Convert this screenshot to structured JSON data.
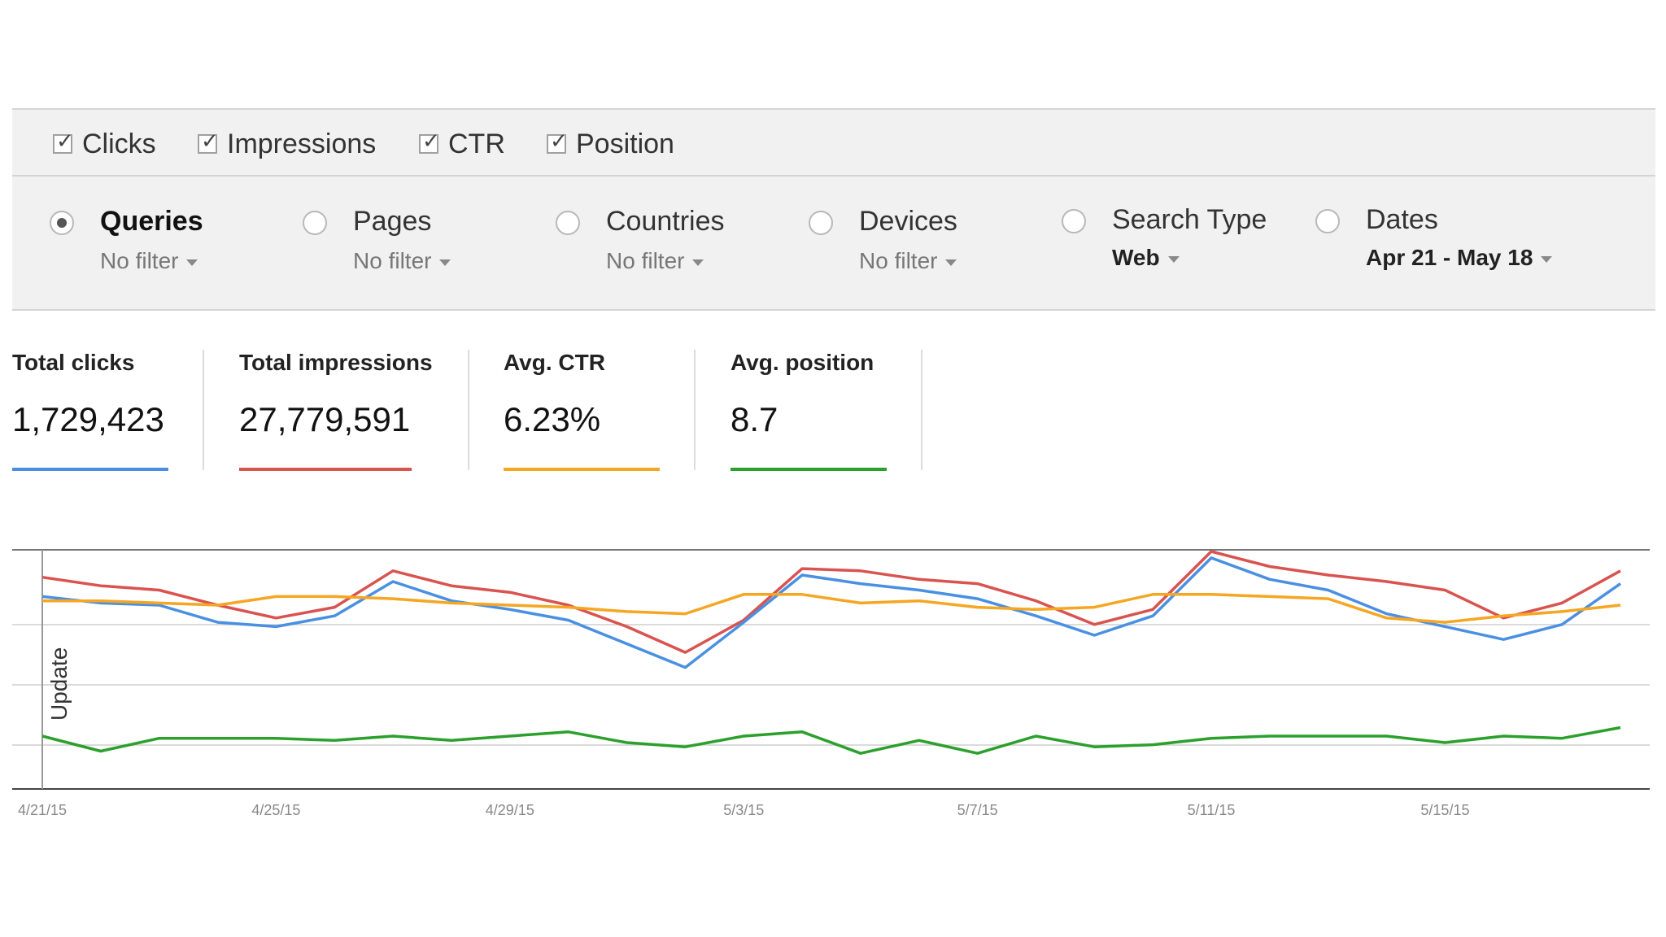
{
  "metrics": [
    {
      "label": "Clicks",
      "checked": true
    },
    {
      "label": "Impressions",
      "checked": true
    },
    {
      "label": "CTR",
      "checked": true
    },
    {
      "label": "Position",
      "checked": true
    }
  ],
  "dimensions": [
    {
      "label": "Queries",
      "filter": "No filter",
      "selected": true
    },
    {
      "label": "Pages",
      "filter": "No filter",
      "selected": false
    },
    {
      "label": "Countries",
      "filter": "No filter",
      "selected": false
    },
    {
      "label": "Devices",
      "filter": "No filter",
      "selected": false
    },
    {
      "label": "Search Type",
      "filter": "Web",
      "selected": false
    },
    {
      "label": "Dates",
      "filter": "Apr 21 - May 18",
      "selected": false
    }
  ],
  "summary": [
    {
      "title": "Total clicks",
      "value": "1,729,423",
      "color": "#4a90e2"
    },
    {
      "title": "Total impressions",
      "value": "27,779,591",
      "color": "#d9534f"
    },
    {
      "title": "Avg. CTR",
      "value": "6.23%",
      "color": "#f5a623"
    },
    {
      "title": "Avg. position",
      "value": "8.7",
      "color": "#2ca02c"
    }
  ],
  "chart_data": {
    "type": "line",
    "x": [
      "4/21/15",
      "4/22/15",
      "4/23/15",
      "4/24/15",
      "4/25/15",
      "4/26/15",
      "4/27/15",
      "4/28/15",
      "4/29/15",
      "4/30/15",
      "5/1/15",
      "5/2/15",
      "5/3/15",
      "5/4/15",
      "5/5/15",
      "5/6/15",
      "5/7/15",
      "5/8/15",
      "5/9/15",
      "5/10/15",
      "5/11/15",
      "5/12/15",
      "5/13/15",
      "5/14/15",
      "5/15/15",
      "5/16/15",
      "5/17/15",
      "5/18/15"
    ],
    "xticks": [
      "4/21/15",
      "4/25/15",
      "4/29/15",
      "5/3/15",
      "5/7/15",
      "5/11/15",
      "5/15/15"
    ],
    "annotation": {
      "label": "Update",
      "x": "4/21/15"
    },
    "ylim": [
      0,
      100
    ],
    "grid": true,
    "series": [
      {
        "color": "#d9534f",
        "values": [
          88,
          84,
          82,
          75,
          69,
          74,
          91,
          84,
          81,
          75,
          65,
          53,
          68,
          92,
          91,
          87,
          85,
          77,
          66,
          73,
          100,
          93,
          89,
          86,
          82,
          69,
          76,
          91
        ]
      },
      {
        "color": "#4a90e2",
        "values": [
          79,
          76,
          75,
          67,
          65,
          70,
          86,
          77,
          73,
          68,
          57,
          46,
          67,
          89,
          85,
          82,
          78,
          70,
          61,
          70,
          97,
          87,
          82,
          71,
          65,
          59,
          66,
          85
        ]
      },
      {
        "color": "#f5a623",
        "values": [
          77,
          77,
          76,
          75,
          79,
          79,
          78,
          76,
          75,
          74,
          72,
          71,
          80,
          80,
          76,
          77,
          74,
          73,
          74,
          80,
          80,
          79,
          78,
          69,
          67,
          70,
          72,
          75
        ]
      },
      {
        "color": "#2ca02c",
        "values": [
          14,
          7,
          13,
          13,
          13,
          12,
          14,
          12,
          14,
          16,
          11,
          9,
          14,
          16,
          6,
          12,
          6,
          14,
          9,
          10,
          13,
          14,
          14,
          14,
          11,
          14,
          13,
          18
        ]
      }
    ]
  }
}
